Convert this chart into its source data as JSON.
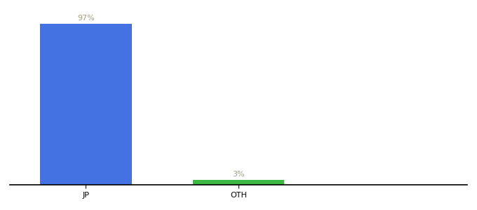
{
  "categories": [
    "JP",
    "OTH"
  ],
  "values": [
    97,
    3
  ],
  "bar_colors": [
    "#4472e3",
    "#3cb843"
  ],
  "label_colors": [
    "#a0a080",
    "#a0a080"
  ],
  "labels": [
    "97%",
    "3%"
  ],
  "ylim": [
    0,
    105
  ],
  "background_color": "#ffffff",
  "bar_width": 0.6,
  "tick_fontsize": 8,
  "label_fontsize": 8,
  "figwidth": 6.8,
  "figheight": 3.0,
  "dpi": 100
}
